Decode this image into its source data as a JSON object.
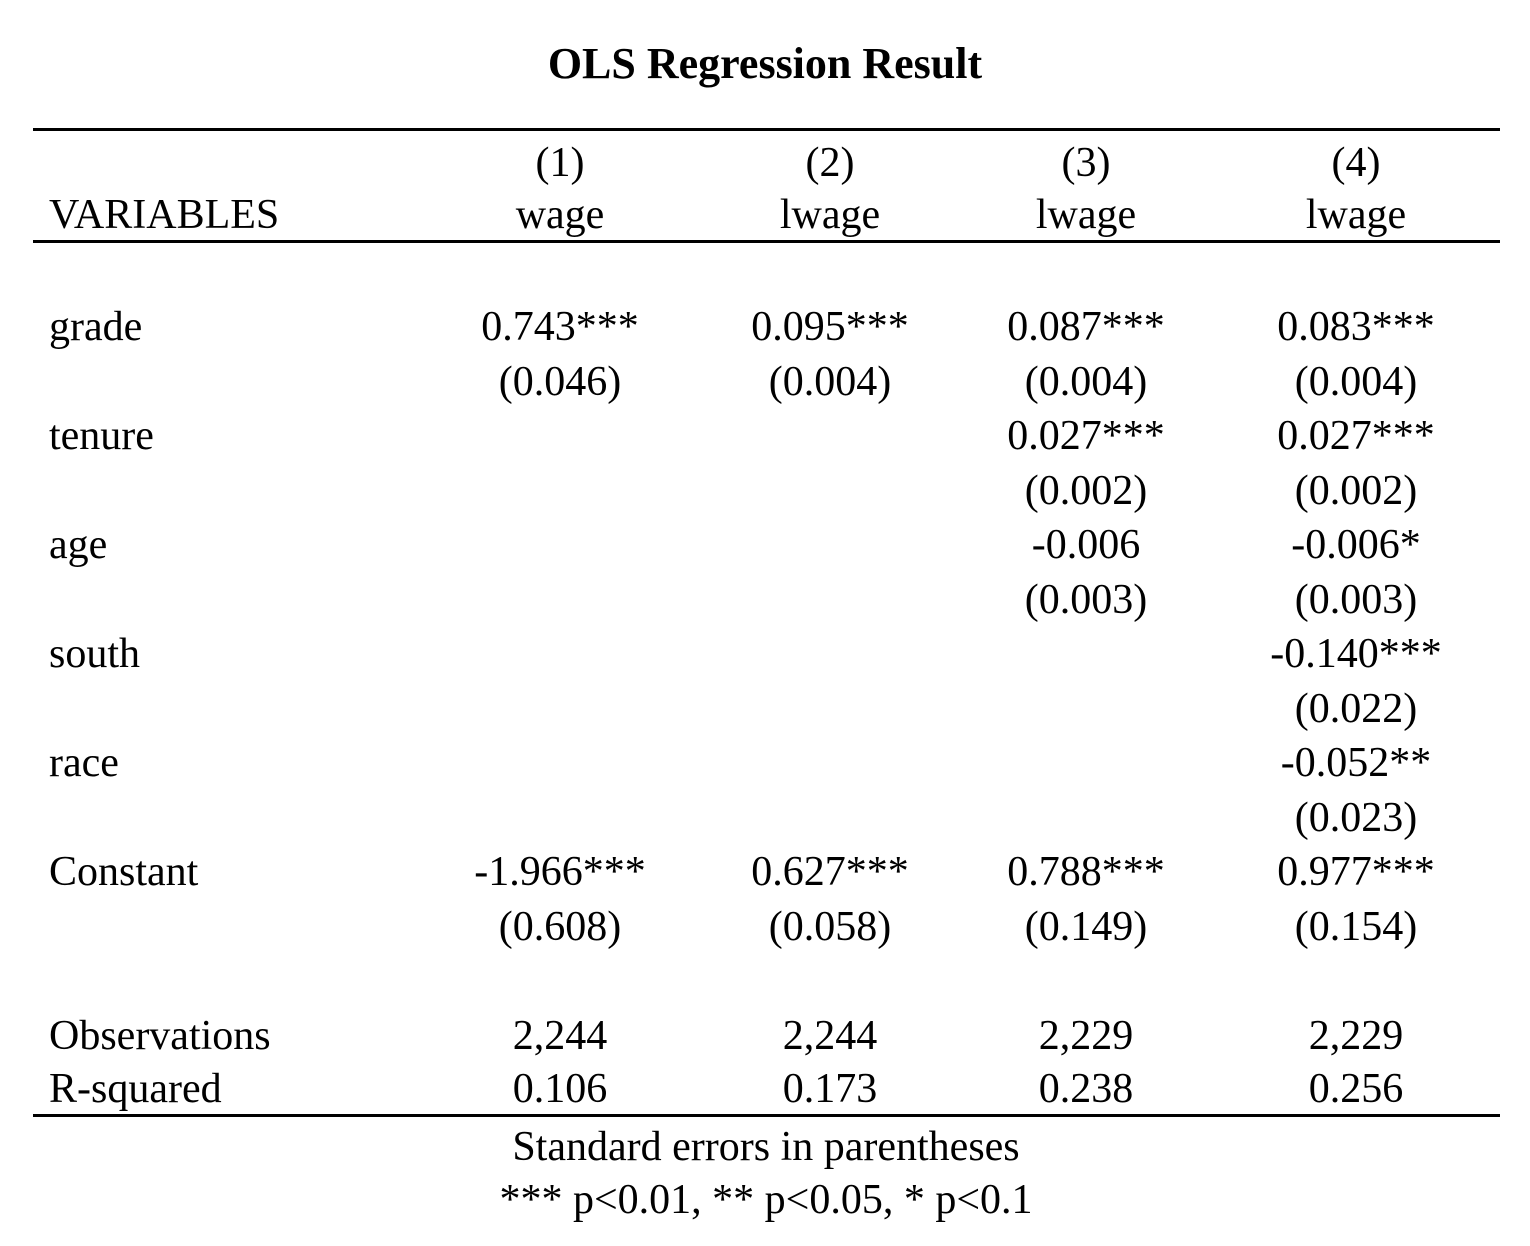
{
  "title": "OLS Regression Result",
  "header": {
    "variables_label": "VARIABLES",
    "columns": [
      {
        "number": "(1)",
        "dependent": "wage"
      },
      {
        "number": "(2)",
        "dependent": "lwage"
      },
      {
        "number": "(3)",
        "dependent": "lwage"
      },
      {
        "number": "(4)",
        "dependent": "lwage"
      }
    ]
  },
  "rows": [
    {
      "variable": "grade",
      "coef": [
        "0.743***",
        "0.095***",
        "0.087***",
        "0.083***"
      ],
      "se": [
        "(0.046)",
        "(0.004)",
        "(0.004)",
        "(0.004)"
      ]
    },
    {
      "variable": "tenure",
      "coef": [
        "",
        "",
        "0.027***",
        "0.027***"
      ],
      "se": [
        "",
        "",
        "(0.002)",
        "(0.002)"
      ]
    },
    {
      "variable": "age",
      "coef": [
        "",
        "",
        "-0.006",
        "-0.006*"
      ],
      "se": [
        "",
        "",
        "(0.003)",
        "(0.003)"
      ]
    },
    {
      "variable": "south",
      "coef": [
        "",
        "",
        "",
        "-0.140***"
      ],
      "se": [
        "",
        "",
        "",
        "(0.022)"
      ]
    },
    {
      "variable": "race",
      "coef": [
        "",
        "",
        "",
        "-0.052**"
      ],
      "se": [
        "",
        "",
        "",
        "(0.023)"
      ]
    },
    {
      "variable": "Constant",
      "coef": [
        "-1.966***",
        "0.627***",
        "0.788***",
        "0.977***"
      ],
      "se": [
        "(0.608)",
        "(0.058)",
        "(0.149)",
        "(0.154)"
      ]
    }
  ],
  "stats": [
    {
      "label": "Observations",
      "values": [
        "2,244",
        "2,244",
        "2,229",
        "2,229"
      ]
    },
    {
      "label": "R-squared",
      "values": [
        "0.106",
        "0.173",
        "0.238",
        "0.256"
      ]
    }
  ],
  "notes": [
    "Standard errors in parentheses",
    "*** p<0.01, ** p<0.05, * p<0.1"
  ]
}
